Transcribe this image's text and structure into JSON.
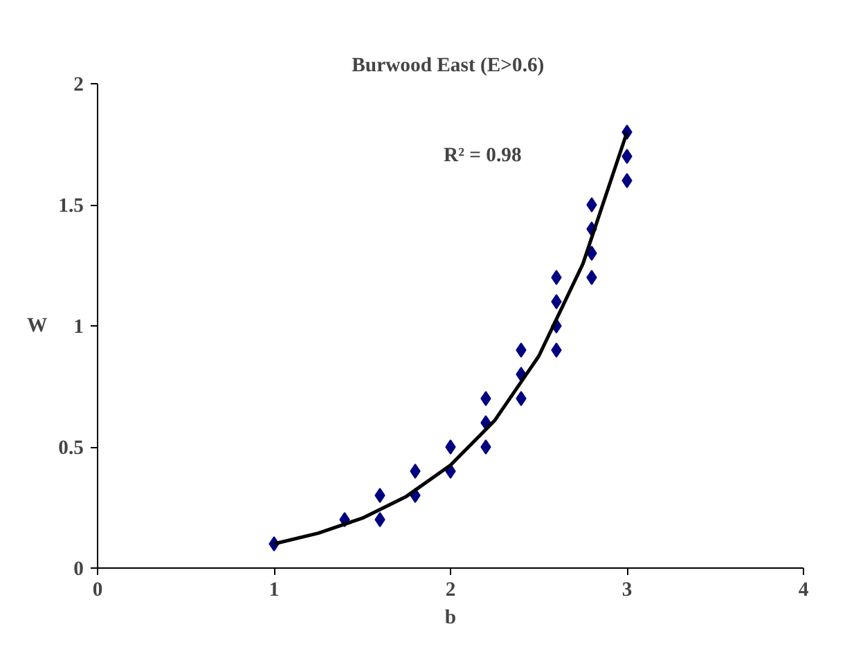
{
  "chart_data": {
    "type": "scatter",
    "title": "Burwood East  (E>0.6)",
    "xlabel": "b",
    "ylabel": "W",
    "xlim": [
      0,
      4
    ],
    "xticks": [
      0,
      1,
      2,
      3,
      4
    ],
    "ylim": [
      0,
      2
    ],
    "yticks": [
      0,
      0.5,
      1,
      1.5,
      2
    ],
    "grid": false,
    "annotations": [
      "R² = 0.98"
    ],
    "series": [
      {
        "marker": "diamond",
        "color": "#000080",
        "x": [
          1,
          1.4,
          1.6,
          1.6,
          1.8,
          1.8,
          2,
          2,
          2.2,
          2.2,
          2.2,
          2.4,
          2.4,
          2.4,
          2.6,
          2.6,
          2.6,
          2.6,
          2.8,
          2.8,
          2.8,
          2.8,
          3,
          3,
          3
        ],
        "values": [
          0.1,
          0.2,
          0.3,
          0.2,
          0.4,
          0.3,
          0.5,
          0.4,
          0.7,
          0.6,
          0.5,
          0.9,
          0.8,
          0.7,
          1.2,
          1.1,
          1.0,
          0.9,
          1.5,
          1.4,
          1.3,
          1.2,
          1.8,
          1.7,
          1.6
        ]
      },
      {
        "type": "line",
        "color": "#000000",
        "line_style": "solid",
        "x": [
          1,
          1.25,
          1.5,
          1.75,
          2,
          2.25,
          2.5,
          2.75,
          3
        ],
        "values": [
          0.1,
          0.144,
          0.206,
          0.296,
          0.425,
          0.609,
          0.875,
          1.256,
          1.8
        ]
      }
    ]
  }
}
